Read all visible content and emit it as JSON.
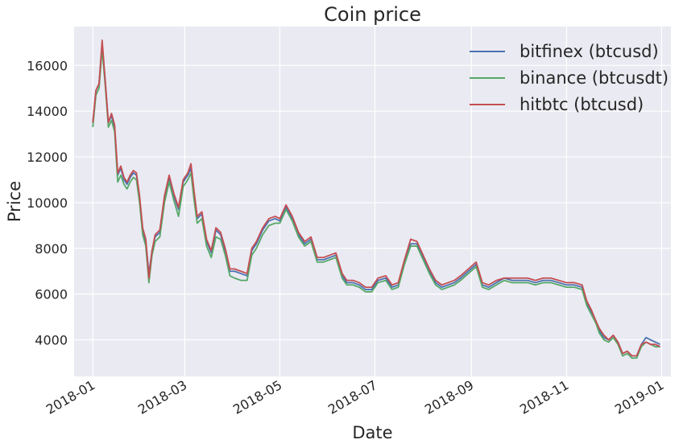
{
  "chart_data": {
    "type": "line",
    "title": "Coin price",
    "xlabel": "Date",
    "ylabel": "Price",
    "xlim": [
      "2017-12-20",
      "2019-01-07"
    ],
    "ylim": [
      2400,
      17700
    ],
    "grid": true,
    "legend_position": "top-right",
    "x_ticks": [
      "2018-01",
      "2018-03",
      "2018-05",
      "2018-07",
      "2018-09",
      "2018-11",
      "2019-01"
    ],
    "y_ticks": [
      4000,
      6000,
      8000,
      10000,
      12000,
      14000,
      16000
    ],
    "y_tick_labels": [
      "4000",
      "6000",
      "8000",
      "10000",
      "12000",
      "14000",
      "16000"
    ],
    "colors": {
      "plot_bg": "#EAEAF2",
      "grid": "#FFFFFF"
    },
    "series": [
      {
        "name": "bitfinex (btcusd)",
        "color": "#4C72B0",
        "x": [
          "2018-01-01",
          "2018-01-03",
          "2018-01-05",
          "2018-01-07",
          "2018-01-09",
          "2018-01-11",
          "2018-01-13",
          "2018-01-15",
          "2018-01-17",
          "2018-01-19",
          "2018-01-21",
          "2018-01-23",
          "2018-01-25",
          "2018-01-27",
          "2018-01-29",
          "2018-01-31",
          "2018-02-02",
          "2018-02-04",
          "2018-02-06",
          "2018-02-08",
          "2018-02-10",
          "2018-02-13",
          "2018-02-16",
          "2018-02-19",
          "2018-02-22",
          "2018-02-25",
          "2018-02-28",
          "2018-03-03",
          "2018-03-05",
          "2018-03-07",
          "2018-03-09",
          "2018-03-12",
          "2018-03-15",
          "2018-03-18",
          "2018-03-21",
          "2018-03-24",
          "2018-03-27",
          "2018-03-30",
          "2018-04-02",
          "2018-04-06",
          "2018-04-10",
          "2018-04-13",
          "2018-04-16",
          "2018-04-20",
          "2018-04-24",
          "2018-04-28",
          "2018-05-01",
          "2018-05-05",
          "2018-05-09",
          "2018-05-13",
          "2018-05-17",
          "2018-05-21",
          "2018-05-25",
          "2018-05-29",
          "2018-06-02",
          "2018-06-06",
          "2018-06-10",
          "2018-06-13",
          "2018-06-17",
          "2018-06-21",
          "2018-06-25",
          "2018-06-29",
          "2018-07-03",
          "2018-07-08",
          "2018-07-12",
          "2018-07-16",
          "2018-07-20",
          "2018-07-24",
          "2018-07-28",
          "2018-08-01",
          "2018-08-05",
          "2018-08-09",
          "2018-08-13",
          "2018-08-17",
          "2018-08-21",
          "2018-08-25",
          "2018-08-30",
          "2018-09-04",
          "2018-09-08",
          "2018-09-12",
          "2018-09-17",
          "2018-09-22",
          "2018-09-27",
          "2018-10-02",
          "2018-10-07",
          "2018-10-12",
          "2018-10-17",
          "2018-10-22",
          "2018-10-27",
          "2018-11-01",
          "2018-11-06",
          "2018-11-11",
          "2018-11-14",
          "2018-11-17",
          "2018-11-20",
          "2018-11-22",
          "2018-11-25",
          "2018-11-28",
          "2018-12-01",
          "2018-12-04",
          "2018-12-07",
          "2018-12-10",
          "2018-12-13",
          "2018-12-16",
          "2018-12-19",
          "2018-12-22",
          "2018-12-25",
          "2018-12-28",
          "2018-12-31"
        ],
        "values": [
          13500,
          14900,
          15200,
          16900,
          15300,
          13500,
          13800,
          13300,
          11200,
          11500,
          11000,
          10800,
          11100,
          11300,
          11200,
          10200,
          8800,
          8300,
          6900,
          7900,
          8500,
          8700,
          10200,
          11100,
          10300,
          9700,
          10900,
          11200,
          11500,
          10400,
          9300,
          9500,
          8300,
          7800,
          8800,
          8600,
          7900,
          7000,
          7000,
          6900,
          6800,
          7900,
          8200,
          8800,
          9200,
          9300,
          9200,
          9800,
          9300,
          8600,
          8200,
          8400,
          7500,
          7500,
          7600,
          7700,
          6800,
          6500,
          6500,
          6400,
          6200,
          6200,
          6600,
          6700,
          6300,
          6400,
          7400,
          8200,
          8200,
          7600,
          7000,
          6500,
          6300,
          6400,
          6500,
          6700,
          7000,
          7300,
          6400,
          6300,
          6500,
          6700,
          6600,
          6600,
          6600,
          6500,
          6600,
          6600,
          6500,
          6400,
          6400,
          6300,
          5600,
          5200,
          4800,
          4400,
          4100,
          4000,
          4200,
          3900,
          3400,
          3500,
          3300,
          3300,
          3800,
          4100,
          4000,
          3900,
          3800
        ]
      },
      {
        "name": "binance (btcusdt)",
        "color": "#55A868",
        "x": [
          "2018-01-01",
          "2018-01-03",
          "2018-01-05",
          "2018-01-07",
          "2018-01-09",
          "2018-01-11",
          "2018-01-13",
          "2018-01-15",
          "2018-01-17",
          "2018-01-19",
          "2018-01-21",
          "2018-01-23",
          "2018-01-25",
          "2018-01-27",
          "2018-01-29",
          "2018-01-31",
          "2018-02-02",
          "2018-02-04",
          "2018-02-06",
          "2018-02-08",
          "2018-02-10",
          "2018-02-13",
          "2018-02-16",
          "2018-02-19",
          "2018-02-22",
          "2018-02-25",
          "2018-02-28",
          "2018-03-03",
          "2018-03-05",
          "2018-03-07",
          "2018-03-09",
          "2018-03-12",
          "2018-03-15",
          "2018-03-18",
          "2018-03-21",
          "2018-03-24",
          "2018-03-27",
          "2018-03-30",
          "2018-04-02",
          "2018-04-06",
          "2018-04-10",
          "2018-04-13",
          "2018-04-16",
          "2018-04-20",
          "2018-04-24",
          "2018-04-28",
          "2018-05-01",
          "2018-05-05",
          "2018-05-09",
          "2018-05-13",
          "2018-05-17",
          "2018-05-21",
          "2018-05-25",
          "2018-05-29",
          "2018-06-02",
          "2018-06-06",
          "2018-06-10",
          "2018-06-13",
          "2018-06-17",
          "2018-06-21",
          "2018-06-25",
          "2018-06-29",
          "2018-07-03",
          "2018-07-08",
          "2018-07-12",
          "2018-07-16",
          "2018-07-20",
          "2018-07-24",
          "2018-07-28",
          "2018-08-01",
          "2018-08-05",
          "2018-08-09",
          "2018-08-13",
          "2018-08-17",
          "2018-08-21",
          "2018-08-25",
          "2018-08-30",
          "2018-09-04",
          "2018-09-08",
          "2018-09-12",
          "2018-09-17",
          "2018-09-22",
          "2018-09-27",
          "2018-10-02",
          "2018-10-07",
          "2018-10-12",
          "2018-10-17",
          "2018-10-22",
          "2018-10-27",
          "2018-11-01",
          "2018-11-06",
          "2018-11-11",
          "2018-11-14",
          "2018-11-17",
          "2018-11-20",
          "2018-11-22",
          "2018-11-25",
          "2018-11-28",
          "2018-12-01",
          "2018-12-04",
          "2018-12-07",
          "2018-12-10",
          "2018-12-13",
          "2018-12-16",
          "2018-12-19",
          "2018-12-22",
          "2018-12-25",
          "2018-12-28",
          "2018-12-31"
        ],
        "values": [
          13300,
          14700,
          15000,
          16700,
          15100,
          13300,
          13600,
          13100,
          10900,
          11200,
          10800,
          10600,
          10900,
          11100,
          11000,
          10000,
          8600,
          8100,
          6500,
          7700,
          8300,
          8500,
          10000,
          10900,
          10100,
          9400,
          10700,
          11000,
          11300,
          10100,
          9100,
          9300,
          8100,
          7600,
          8500,
          8400,
          7700,
          6800,
          6700,
          6600,
          6600,
          7700,
          8000,
          8600,
          9000,
          9100,
          9100,
          9700,
          9200,
          8500,
          8100,
          8300,
          7400,
          7400,
          7500,
          7600,
          6700,
          6400,
          6400,
          6300,
          6100,
          6100,
          6500,
          6600,
          6200,
          6300,
          7300,
          8100,
          8100,
          7500,
          6900,
          6400,
          6200,
          6300,
          6400,
          6600,
          6900,
          7200,
          6300,
          6200,
          6400,
          6600,
          6500,
          6500,
          6500,
          6400,
          6500,
          6500,
          6400,
          6300,
          6300,
          6200,
          5500,
          5100,
          4700,
          4300,
          4000,
          3900,
          4100,
          3800,
          3300,
          3400,
          3200,
          3200,
          3700,
          3900,
          3800,
          3700,
          3700
        ]
      },
      {
        "name": "hitbtc (btcusd)",
        "color": "#C44E52",
        "x": [
          "2018-01-01",
          "2018-01-03",
          "2018-01-05",
          "2018-01-07",
          "2018-01-09",
          "2018-01-11",
          "2018-01-13",
          "2018-01-15",
          "2018-01-17",
          "2018-01-19",
          "2018-01-21",
          "2018-01-23",
          "2018-01-25",
          "2018-01-27",
          "2018-01-29",
          "2018-01-31",
          "2018-02-02",
          "2018-02-04",
          "2018-02-06",
          "2018-02-08",
          "2018-02-10",
          "2018-02-13",
          "2018-02-16",
          "2018-02-19",
          "2018-02-22",
          "2018-02-25",
          "2018-02-28",
          "2018-03-03",
          "2018-03-05",
          "2018-03-07",
          "2018-03-09",
          "2018-03-12",
          "2018-03-15",
          "2018-03-18",
          "2018-03-21",
          "2018-03-24",
          "2018-03-27",
          "2018-03-30",
          "2018-04-02",
          "2018-04-06",
          "2018-04-10",
          "2018-04-13",
          "2018-04-16",
          "2018-04-20",
          "2018-04-24",
          "2018-04-28",
          "2018-05-01",
          "2018-05-05",
          "2018-05-09",
          "2018-05-13",
          "2018-05-17",
          "2018-05-21",
          "2018-05-25",
          "2018-05-29",
          "2018-06-02",
          "2018-06-06",
          "2018-06-10",
          "2018-06-13",
          "2018-06-17",
          "2018-06-21",
          "2018-06-25",
          "2018-06-29",
          "2018-07-03",
          "2018-07-08",
          "2018-07-12",
          "2018-07-16",
          "2018-07-20",
          "2018-07-24",
          "2018-07-28",
          "2018-08-01",
          "2018-08-05",
          "2018-08-09",
          "2018-08-13",
          "2018-08-17",
          "2018-08-21",
          "2018-08-25",
          "2018-08-30",
          "2018-09-04",
          "2018-09-08",
          "2018-09-12",
          "2018-09-17",
          "2018-09-22",
          "2018-09-27",
          "2018-10-02",
          "2018-10-07",
          "2018-10-12",
          "2018-10-17",
          "2018-10-22",
          "2018-10-27",
          "2018-11-01",
          "2018-11-06",
          "2018-11-11",
          "2018-11-14",
          "2018-11-17",
          "2018-11-20",
          "2018-11-22",
          "2018-11-25",
          "2018-11-28",
          "2018-12-01",
          "2018-12-04",
          "2018-12-07",
          "2018-12-10",
          "2018-12-13",
          "2018-12-16",
          "2018-12-19",
          "2018-12-22",
          "2018-12-25",
          "2018-12-28",
          "2018-12-31"
        ],
        "values": [
          13500,
          14900,
          15200,
          17100,
          15300,
          13500,
          13900,
          13400,
          11300,
          11600,
          11100,
          10900,
          11200,
          11400,
          11300,
          10300,
          8900,
          8400,
          6700,
          7900,
          8600,
          8800,
          10300,
          11200,
          10400,
          9800,
          11000,
          11300,
          11700,
          10500,
          9400,
          9600,
          8400,
          7900,
          8900,
          8700,
          8000,
          7100,
          7100,
          7000,
          6900,
          8000,
          8300,
          8900,
          9300,
          9400,
          9300,
          9900,
          9400,
          8700,
          8300,
          8500,
          7600,
          7600,
          7700,
          7800,
          6900,
          6600,
          6600,
          6500,
          6300,
          6300,
          6700,
          6800,
          6400,
          6500,
          7500,
          8400,
          8300,
          7700,
          7100,
          6600,
          6400,
          6500,
          6600,
          6800,
          7100,
          7400,
          6500,
          6400,
          6600,
          6700,
          6700,
          6700,
          6700,
          6600,
          6700,
          6700,
          6600,
          6500,
          6500,
          6400,
          5700,
          5300,
          4800,
          4500,
          4200,
          4000,
          4200,
          3900,
          3400,
          3500,
          3300,
          3300,
          3800,
          3900,
          3800,
          3800,
          3700
        ]
      }
    ]
  }
}
